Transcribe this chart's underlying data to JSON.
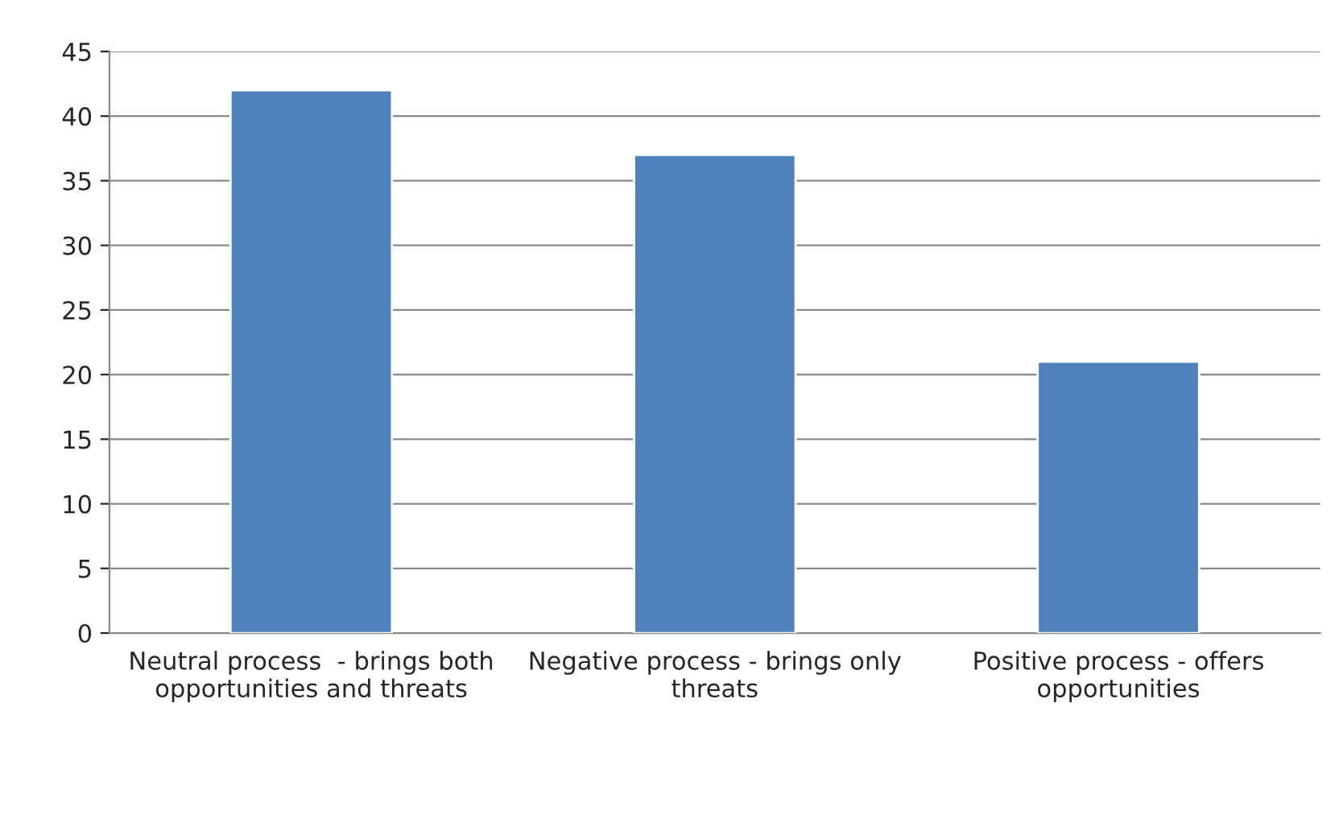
{
  "chart_data": {
    "type": "bar",
    "categories": [
      "Neutral process  - brings both opportunities and threats",
      "Negative process - brings only threats",
      "Positive process - offers opportunities"
    ],
    "values": [
      42,
      37,
      21
    ],
    "color": "#4f81bd",
    "ylim": [
      0,
      45
    ],
    "yticks": [
      0,
      5,
      10,
      15,
      20,
      25,
      30,
      35,
      40,
      45
    ],
    "grid": "y"
  }
}
